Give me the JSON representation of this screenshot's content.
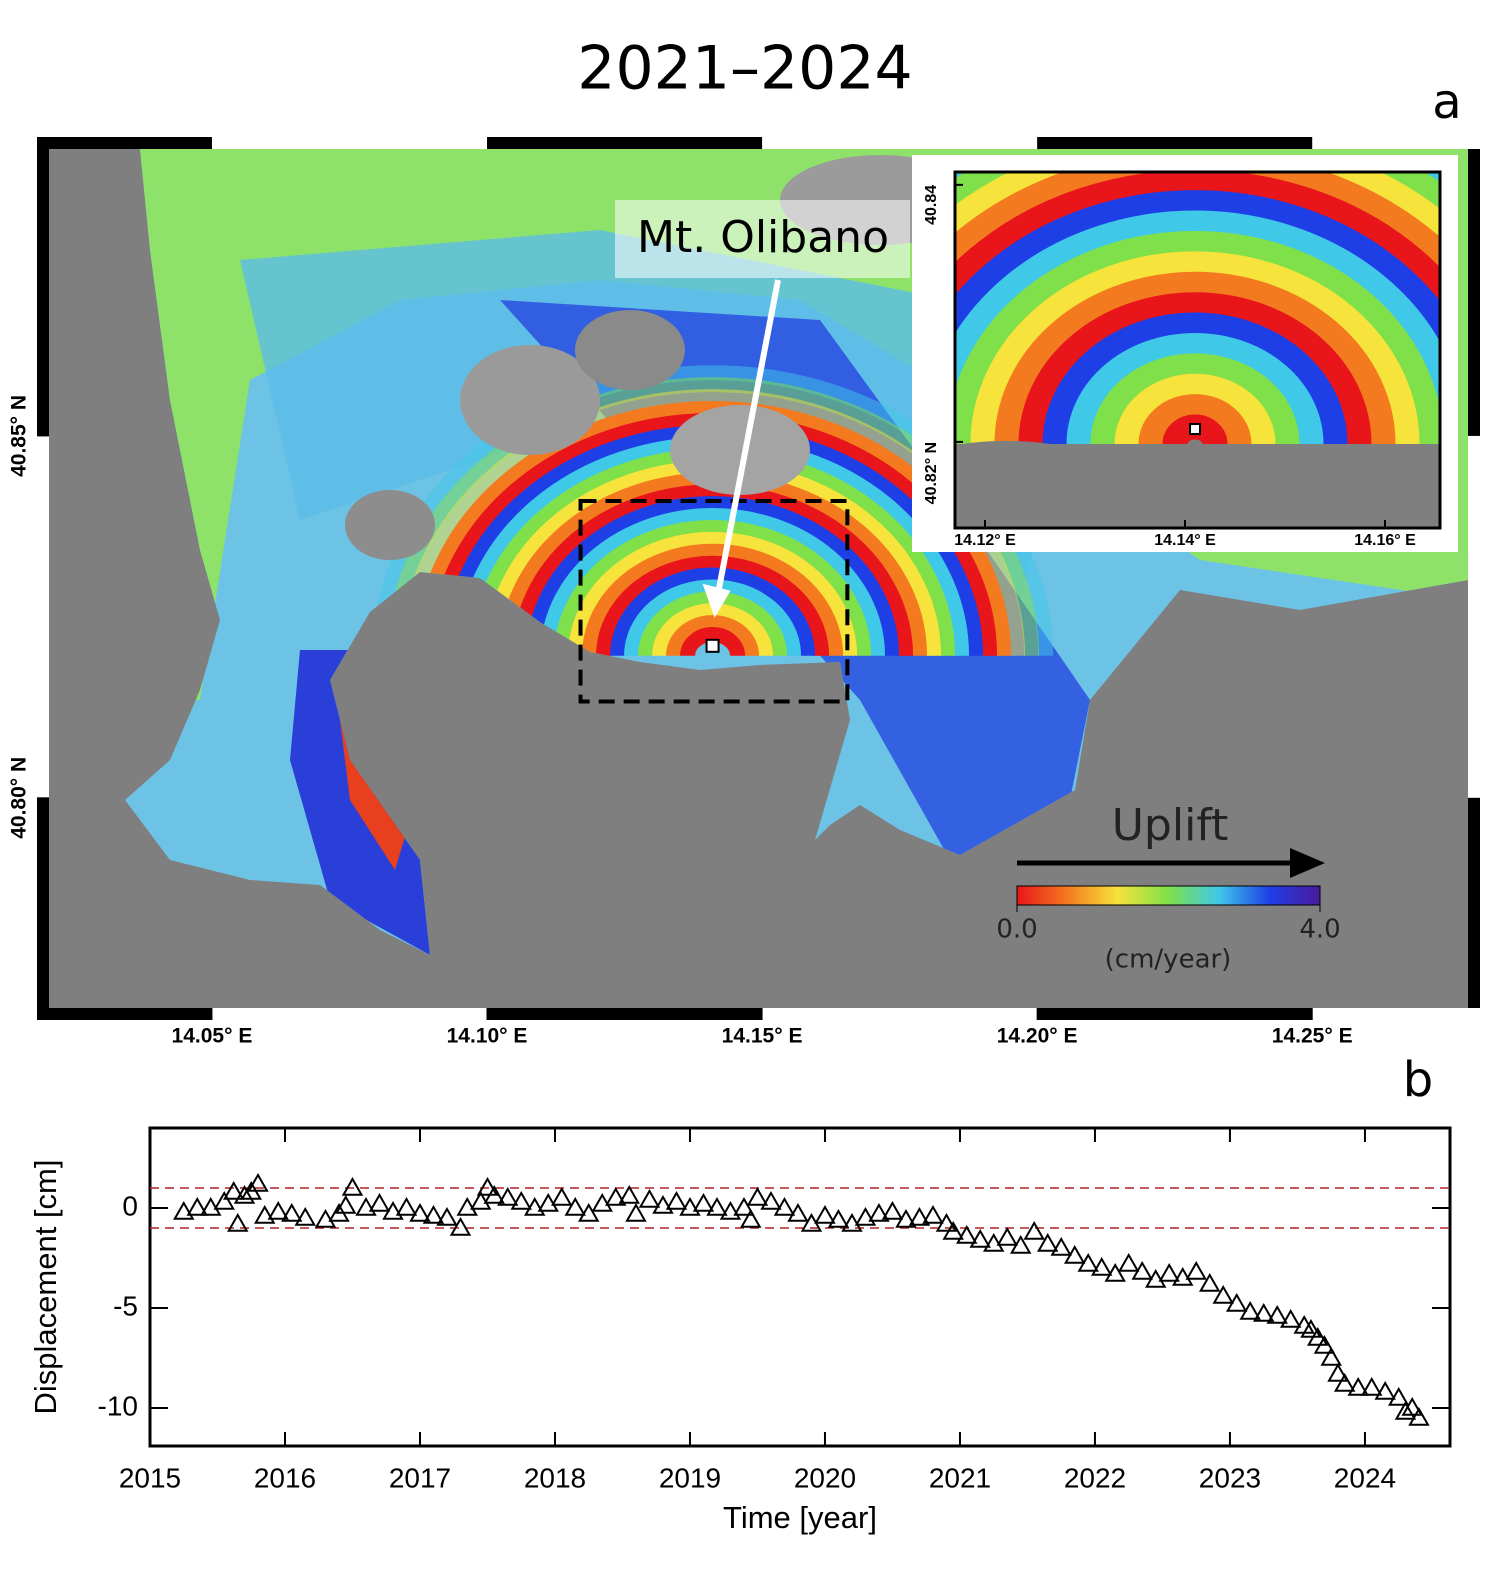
{
  "chart_data": [
    {
      "type": "map",
      "title": "2021–2024",
      "panel_label": "a",
      "xlim": [
        14.0182,
        14.2805
      ],
      "ylim": [
        40.7693,
        40.8913
      ],
      "xticks": [
        {
          "value": 14.05,
          "label": "14.05° E"
        },
        {
          "value": 14.1,
          "label": "14.10° E"
        },
        {
          "value": 14.15,
          "label": "14.15° E"
        },
        {
          "value": 14.2,
          "label": "14.20° E"
        },
        {
          "value": 14.25,
          "label": "14.25° E"
        }
      ],
      "yticks": [
        {
          "value": 40.8,
          "label": "40.80° N"
        },
        {
          "value": 40.85,
          "label": "40.85° N"
        }
      ],
      "annotation": "Mt. Olibano",
      "site": [
        14.141,
        40.821
      ],
      "colorbar": {
        "label": "Uplift",
        "unit": "(cm/year)",
        "clim": [
          0,
          4
        ],
        "ticks": [
          {
            "value": 0,
            "label": "0.0"
          },
          {
            "value": 4,
            "label": "4.0"
          }
        ],
        "colors": [
          "#e8161b",
          "#f47a1f",
          "#f6e33b",
          "#7fe04a",
          "#3fc8e8",
          "#1f3fe6",
          "#4a1a9c"
        ]
      },
      "inset": {
        "xlim": [
          14.117,
          14.1655
        ],
        "ylim": [
          40.8133,
          40.841
        ],
        "xticks": [
          {
            "value": 14.12,
            "label": "14.12° E"
          },
          {
            "value": 14.14,
            "label": "14.14° E"
          },
          {
            "value": 14.16,
            "label": "14.16° E"
          }
        ],
        "yticks": [
          {
            "value": 40.82,
            "label": "40.82° N"
          },
          {
            "value": 40.84,
            "label": "40.84"
          }
        ]
      }
    },
    {
      "type": "scatter",
      "panel_label": "b",
      "x_label": "Time [year]",
      "y_label": "Displacement [cm]",
      "marker": "triangle",
      "color": "#000000",
      "xlim": [
        2015,
        2024.63
      ],
      "ylim": [
        -11.9,
        4
      ],
      "xticks": [
        2015,
        2016,
        2017,
        2018,
        2019,
        2020,
        2021,
        2022,
        2023,
        2024
      ],
      "yticks": [
        0,
        -5,
        -10
      ],
      "hlines": [
        1,
        -1
      ],
      "hline_color": "#b22222",
      "x": [
        2015.25,
        2015.35,
        2015.45,
        2015.55,
        2015.62,
        2015.65,
        2015.7,
        2015.75,
        2015.8,
        2015.85,
        2015.95,
        2016.05,
        2016.15,
        2016.3,
        2016.4,
        2016.45,
        2016.5,
        2016.6,
        2016.7,
        2016.8,
        2016.9,
        2017.0,
        2017.1,
        2017.2,
        2017.3,
        2017.35,
        2017.45,
        2017.5,
        2017.55,
        2017.65,
        2017.75,
        2017.85,
        2017.95,
        2018.05,
        2018.15,
        2018.25,
        2018.35,
        2018.45,
        2018.55,
        2018.6,
        2018.7,
        2018.8,
        2018.9,
        2019.0,
        2019.1,
        2019.2,
        2019.3,
        2019.4,
        2019.45,
        2019.5,
        2019.6,
        2019.7,
        2019.8,
        2019.9,
        2020.0,
        2020.1,
        2020.2,
        2020.3,
        2020.4,
        2020.5,
        2020.6,
        2020.7,
        2020.8,
        2020.9,
        2020.95,
        2021.05,
        2021.15,
        2021.25,
        2021.35,
        2021.45,
        2021.55,
        2021.65,
        2021.75,
        2021.85,
        2021.95,
        2022.05,
        2022.15,
        2022.25,
        2022.35,
        2022.45,
        2022.55,
        2022.65,
        2022.75,
        2022.85,
        2022.95,
        2023.05,
        2023.15,
        2023.25,
        2023.35,
        2023.45,
        2023.55,
        2023.6,
        2023.65,
        2023.7,
        2023.75,
        2023.8,
        2023.85,
        2023.95,
        2024.05,
        2024.15,
        2024.25,
        2024.3,
        2024.35,
        2024.4
      ],
      "values": [
        -0.2,
        0,
        0,
        0.3,
        0.8,
        -0.8,
        0.6,
        0.8,
        1.2,
        -0.4,
        -0.2,
        -0.3,
        -0.5,
        -0.6,
        -0.3,
        0.1,
        1.0,
        0,
        0.2,
        -0.2,
        0,
        -0.3,
        -0.4,
        -0.5,
        -1.0,
        0,
        0.3,
        1.0,
        0.6,
        0.5,
        0.3,
        0,
        0.2,
        0.5,
        0,
        -0.3,
        0.2,
        0.5,
        0.6,
        -0.3,
        0.4,
        0.1,
        0.3,
        0,
        0.2,
        0,
        -0.2,
        0,
        -0.6,
        0.5,
        0.3,
        0,
        -0.3,
        -0.8,
        -0.4,
        -0.6,
        -0.8,
        -0.5,
        -0.3,
        -0.2,
        -0.6,
        -0.5,
        -0.4,
        -0.8,
        -1.2,
        -1.4,
        -1.6,
        -1.8,
        -1.5,
        -1.9,
        -1.2,
        -1.8,
        -2.0,
        -2.4,
        -2.8,
        -3.0,
        -3.3,
        -2.8,
        -3.2,
        -3.6,
        -3.3,
        -3.5,
        -3.2,
        -3.8,
        -4.4,
        -4.8,
        -5.2,
        -5.3,
        -5.4,
        -5.6,
        -5.9,
        -6.1,
        -6.5,
        -6.9,
        -7.5,
        -8.3,
        -8.8,
        -9.0,
        -9.0,
        -9.2,
        -9.5,
        -10.2,
        -10.0,
        -10.5
      ]
    }
  ]
}
